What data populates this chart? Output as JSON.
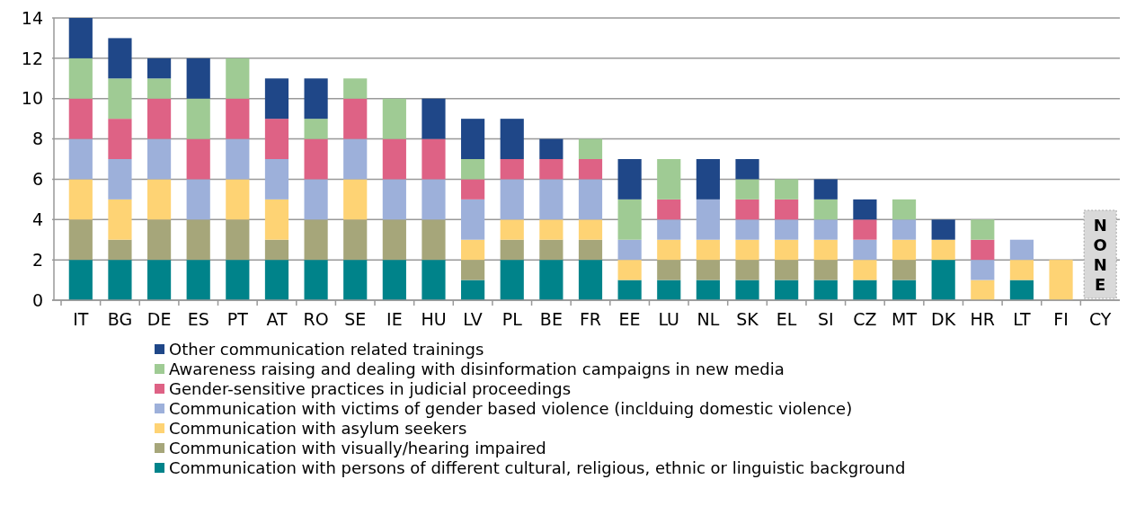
{
  "chart_data": {
    "type": "bar",
    "stacked": true,
    "categories": [
      "IT",
      "BG",
      "DE",
      "ES",
      "PT",
      "AT",
      "RO",
      "SE",
      "IE",
      "HU",
      "LV",
      "PL",
      "BE",
      "FR",
      "EE",
      "LU",
      "NL",
      "SK",
      "EL",
      "SI",
      "CZ",
      "MT",
      "DK",
      "HR",
      "LT",
      "FI",
      "CY"
    ],
    "series": [
      {
        "name": "Communication with persons of different cultural, religious, ethnic or linguistic background",
        "color": "#00838a",
        "values": [
          2,
          2,
          2,
          2,
          2,
          2,
          2,
          2,
          2,
          2,
          1,
          2,
          2,
          2,
          1,
          1,
          1,
          1,
          1,
          1,
          1,
          1,
          2,
          0,
          1,
          0,
          0
        ]
      },
      {
        "name": "Communication with visually/hearing impaired",
        "color": "#a6a67a",
        "values": [
          2,
          1,
          2,
          2,
          2,
          1,
          2,
          2,
          2,
          2,
          1,
          1,
          1,
          1,
          0,
          1,
          1,
          1,
          1,
          1,
          0,
          1,
          0,
          0,
          0,
          0,
          0
        ]
      },
      {
        "name": "Communication with asylum seekers",
        "color": "#fed374",
        "values": [
          2,
          2,
          2,
          0,
          2,
          2,
          0,
          2,
          0,
          0,
          1,
          1,
          1,
          1,
          1,
          1,
          1,
          1,
          1,
          1,
          1,
          1,
          1,
          1,
          1,
          2,
          0
        ]
      },
      {
        "name": "Communication with victims of gender based violence (inclduing domestic violence)",
        "color": "#9db0da",
        "values": [
          2,
          2,
          2,
          2,
          2,
          2,
          2,
          2,
          2,
          2,
          2,
          2,
          2,
          2,
          1,
          1,
          2,
          1,
          1,
          1,
          1,
          1,
          0,
          1,
          1,
          0,
          0
        ]
      },
      {
        "name": "Gender-sensitive practices in judicial proceedings",
        "color": "#de6285",
        "values": [
          2,
          2,
          2,
          2,
          2,
          2,
          2,
          2,
          2,
          2,
          1,
          1,
          1,
          1,
          0,
          1,
          0,
          1,
          1,
          0,
          1,
          0,
          0,
          1,
          0,
          0,
          0
        ]
      },
      {
        "name": "Awareness raising and dealing with disinformation campaigns in new media",
        "color": "#9fcb94",
        "values": [
          2,
          2,
          1,
          2,
          2,
          0,
          1,
          1,
          2,
          0,
          1,
          0,
          0,
          1,
          2,
          2,
          0,
          1,
          1,
          1,
          0,
          1,
          0,
          1,
          0,
          0,
          0
        ]
      },
      {
        "name": "Other communication related trainings",
        "color": "#1f4788",
        "values": [
          2,
          2,
          1,
          2,
          0,
          2,
          2,
          0,
          0,
          2,
          2,
          2,
          1,
          0,
          2,
          0,
          2,
          1,
          0,
          1,
          1,
          0,
          1,
          0,
          0,
          0,
          0
        ]
      }
    ],
    "ylim": [
      0,
      14
    ],
    "yticks": [
      0,
      2,
      4,
      6,
      8,
      10,
      12,
      14
    ],
    "grid": "y",
    "legend": "bottom",
    "annotations": [
      "NONE"
    ]
  }
}
